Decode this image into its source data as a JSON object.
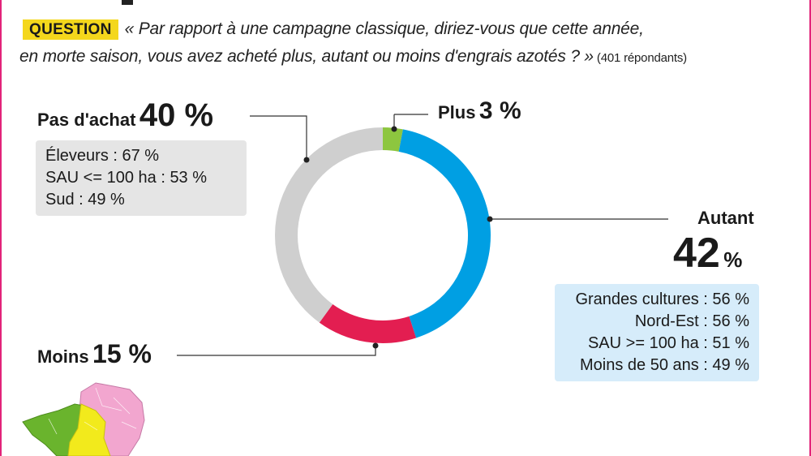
{
  "question": {
    "tag": "QUESTION",
    "line1": "« Par rapport à une campagne classique, diriez-vous que cette année,",
    "line2": "en morte saison, vous avez acheté plus, autant ou moins d'engrais azotés ? »",
    "respondents": "(401 répondants)"
  },
  "chart_data": {
    "type": "pie",
    "variant": "donut",
    "categories": [
      "Plus",
      "Autant",
      "Moins",
      "Pas d'achat"
    ],
    "values": [
      3,
      42,
      15,
      40
    ],
    "value_labels": [
      "3 %",
      "42",
      "15 %",
      "40 %"
    ],
    "unit": "%",
    "colors": [
      "#8dc63f",
      "#009fe3",
      "#e31e51",
      "#cfcfcf"
    ]
  },
  "details": {
    "pas_achat": [
      "Éleveurs : 67 %",
      "SAU <= 100 ha : 53 %",
      "Sud : 49 %"
    ],
    "autant": [
      "Grandes cultures : 56 %",
      "Nord-Est : 56 %",
      "SAU >= 100 ha : 51 %",
      "Moins de 50 ans : 49 %"
    ]
  },
  "map_colors": {
    "west": "#6ab42d",
    "center": "#f2ea1c",
    "northeast": "#f2a6cf"
  }
}
